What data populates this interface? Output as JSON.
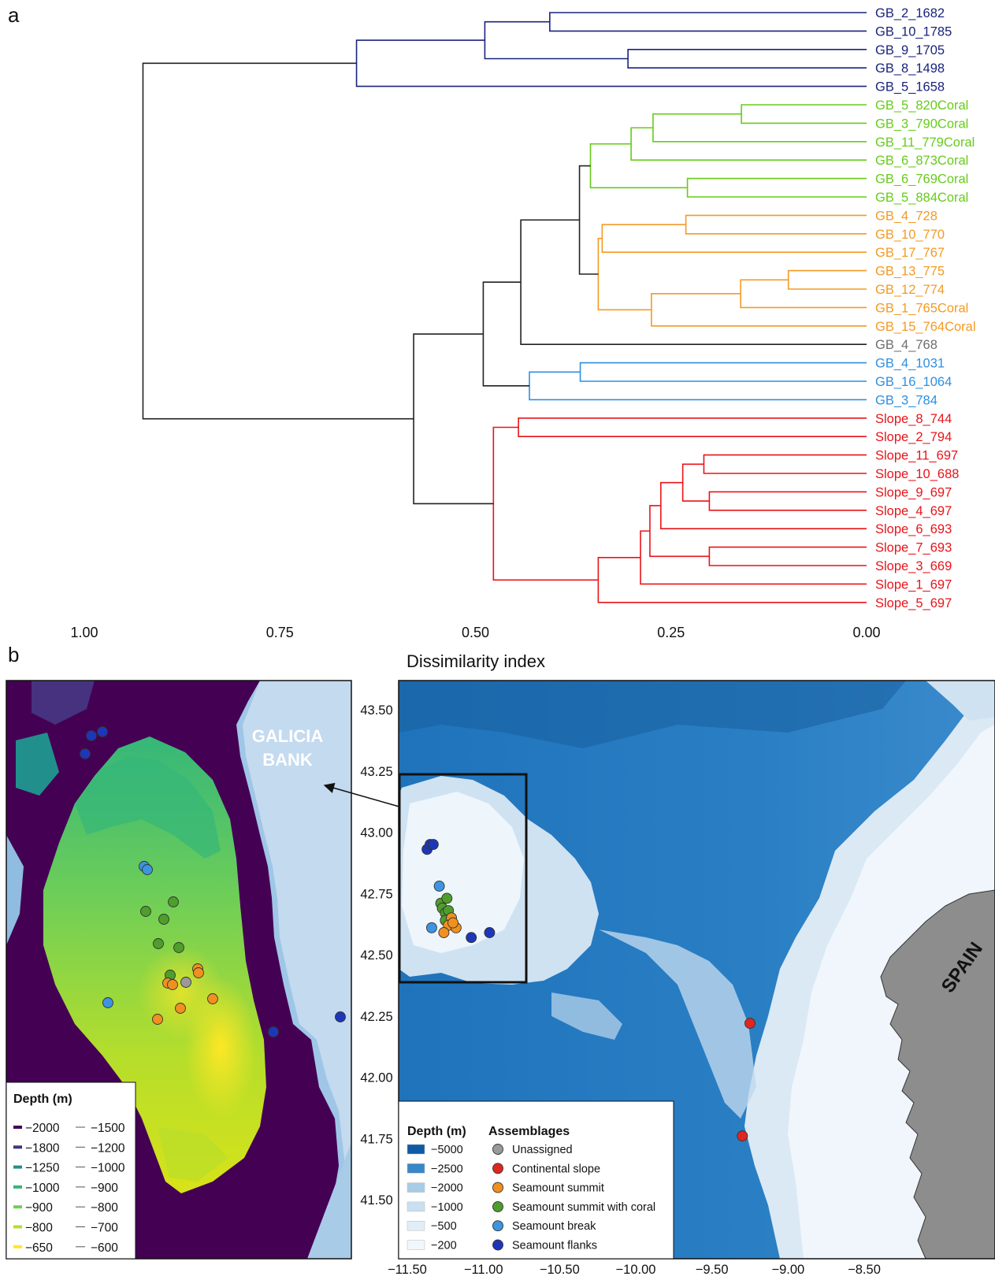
{
  "panel_a": {
    "label": "a",
    "axis_title": "Dissimilarity index",
    "ticks": [
      "1.00",
      "0.75",
      "0.50",
      "0.25",
      "0.00"
    ],
    "tick_values": [
      1.0,
      0.75,
      0.5,
      0.25,
      0.0
    ],
    "colors": {
      "deep": "#1a237e",
      "coral": "#66cc1a",
      "summit": "#f39a26",
      "unassigned": "#6e6e6e",
      "break": "#2e8fe0",
      "slope": "#e8141a",
      "black": "#222222"
    },
    "leaves": [
      {
        "name": "GB_2_1682",
        "group": "deep"
      },
      {
        "name": "GB_10_1785",
        "group": "deep"
      },
      {
        "name": "GB_9_1705",
        "group": "deep"
      },
      {
        "name": "GB_8_1498",
        "group": "deep"
      },
      {
        "name": "GB_5_1658",
        "group": "deep"
      },
      {
        "name": "GB_5_820Coral",
        "group": "coral"
      },
      {
        "name": "GB_3_790Coral",
        "group": "coral"
      },
      {
        "name": "GB_11_779Coral",
        "group": "coral"
      },
      {
        "name": "GB_6_873Coral",
        "group": "coral"
      },
      {
        "name": "GB_6_769Coral",
        "group": "coral"
      },
      {
        "name": "GB_5_884Coral",
        "group": "coral"
      },
      {
        "name": "GB_4_728",
        "group": "summit"
      },
      {
        "name": "GB_10_770",
        "group": "summit"
      },
      {
        "name": "GB_17_767",
        "group": "summit"
      },
      {
        "name": "GB_13_775",
        "group": "summit"
      },
      {
        "name": "GB_12_774",
        "group": "summit"
      },
      {
        "name": "GB_1_765Coral",
        "group": "summit"
      },
      {
        "name": "GB_15_764Coral",
        "group": "summit"
      },
      {
        "name": "GB_4_768",
        "group": "unassigned"
      },
      {
        "name": "GB_4_1031",
        "group": "break"
      },
      {
        "name": "GB_16_1064",
        "group": "break"
      },
      {
        "name": "GB_3_784",
        "group": "break"
      },
      {
        "name": "Slope_8_744",
        "group": "slope"
      },
      {
        "name": "Slope_2_794",
        "group": "slope"
      },
      {
        "name": "Slope_11_697",
        "group": "slope"
      },
      {
        "name": "Slope_10_688",
        "group": "slope"
      },
      {
        "name": "Slope_9_697",
        "group": "slope"
      },
      {
        "name": "Slope_4_697",
        "group": "slope"
      },
      {
        "name": "Slope_6_693",
        "group": "slope"
      },
      {
        "name": "Slope_7_693",
        "group": "slope"
      },
      {
        "name": "Slope_3_669",
        "group": "slope"
      },
      {
        "name": "Slope_1_697",
        "group": "slope"
      },
      {
        "name": "Slope_5_697",
        "group": "slope"
      }
    ],
    "merges": [
      {
        "id": "d1",
        "a": 0,
        "b": 1,
        "h": 0.405,
        "c": "deep"
      },
      {
        "id": "d2",
        "a": 2,
        "b": 3,
        "h": 0.305,
        "c": "deep"
      },
      {
        "id": "d3",
        "a": "d1",
        "b": "d2",
        "h": 0.488,
        "c": "deep"
      },
      {
        "id": "d4",
        "a": "d3",
        "b": 4,
        "h": 0.652,
        "c": "deep"
      },
      {
        "id": "c1",
        "a": 5,
        "b": 6,
        "h": 0.16,
        "c": "coral"
      },
      {
        "id": "c2",
        "a": "c1",
        "b": 7,
        "h": 0.273,
        "c": "coral"
      },
      {
        "id": "c3",
        "a": "c2",
        "b": 8,
        "h": 0.301,
        "c": "coral"
      },
      {
        "id": "c4",
        "a": 9,
        "b": 10,
        "h": 0.229,
        "c": "coral"
      },
      {
        "id": "c5",
        "a": "c3",
        "b": "c4",
        "h": 0.353,
        "c": "coral"
      },
      {
        "id": "s1",
        "a": 11,
        "b": 12,
        "h": 0.231,
        "c": "summit"
      },
      {
        "id": "s2",
        "a": "s1",
        "b": 13,
        "h": 0.338,
        "c": "summit"
      },
      {
        "id": "s3",
        "a": 14,
        "b": 15,
        "h": 0.1,
        "c": "summit"
      },
      {
        "id": "s4",
        "a": "s3",
        "b": 16,
        "h": 0.161,
        "c": "summit"
      },
      {
        "id": "s5",
        "a": "s4",
        "b": 17,
        "h": 0.275,
        "c": "summit"
      },
      {
        "id": "s6",
        "a": "s2",
        "b": "s5",
        "h": 0.343,
        "c": "summit"
      },
      {
        "id": "k1",
        "a": "c5",
        "b": "s6",
        "h": 0.367,
        "c": "black"
      },
      {
        "id": "k2",
        "a": "k1",
        "b": 18,
        "h": 0.442,
        "c": "black"
      },
      {
        "id": "b1",
        "a": 19,
        "b": 20,
        "h": 0.366,
        "c": "break"
      },
      {
        "id": "b2",
        "a": "b1",
        "b": 21,
        "h": 0.431,
        "c": "break"
      },
      {
        "id": "k3",
        "a": "k2",
        "b": "b2",
        "h": 0.49,
        "c": "black"
      },
      {
        "id": "r1",
        "a": 22,
        "b": 23,
        "h": 0.445,
        "c": "slope"
      },
      {
        "id": "r2",
        "a": 24,
        "b": 25,
        "h": 0.208,
        "c": "slope"
      },
      {
        "id": "r3",
        "a": 26,
        "b": 27,
        "h": 0.201,
        "c": "slope"
      },
      {
        "id": "r4",
        "a": "r2",
        "b": "r3",
        "h": 0.235,
        "c": "slope"
      },
      {
        "id": "r5",
        "a": "r4",
        "b": 28,
        "h": 0.263,
        "c": "slope"
      },
      {
        "id": "r6",
        "a": 29,
        "b": 30,
        "h": 0.201,
        "c": "slope"
      },
      {
        "id": "r7",
        "a": "r5",
        "b": "r6",
        "h": 0.277,
        "c": "slope"
      },
      {
        "id": "r8",
        "a": "r7",
        "b": 31,
        "h": 0.289,
        "c": "slope"
      },
      {
        "id": "r9",
        "a": "r8",
        "b": 32,
        "h": 0.343,
        "c": "slope"
      },
      {
        "id": "r10",
        "a": "r1",
        "b": "r9",
        "h": 0.477,
        "c": "slope"
      },
      {
        "id": "k4",
        "a": "k3",
        "b": "r10",
        "h": 0.579,
        "c": "black"
      },
      {
        "id": "k5",
        "a": "d4",
        "b": "k4",
        "h": 0.925,
        "c": "black"
      }
    ]
  },
  "panel_b": {
    "label": "b",
    "inset": {
      "title": "GALICIA BANK",
      "legend_title": "Depth (m)",
      "legend_rows": [
        {
          "a": "−2000",
          "b": "−1500",
          "color": "#440154"
        },
        {
          "a": "−1800",
          "b": "−1200",
          "color": "#46327e"
        },
        {
          "a": "−1250",
          "b": "−1000",
          "color": "#21908c"
        },
        {
          "a": "−1000",
          "b": "−900",
          "color": "#35b779"
        },
        {
          "a": "−900",
          "b": "−800",
          "color": "#6ece58"
        },
        {
          "a": "−800",
          "b": "−700",
          "color": "#b5de2b"
        },
        {
          "a": "−650",
          "b": "−600",
          "color": "#fde725"
        }
      ],
      "points": [
        {
          "x": 116,
          "y": 934,
          "c": "flanks"
        },
        {
          "x": 130,
          "y": 929,
          "c": "flanks"
        },
        {
          "x": 108,
          "y": 957,
          "c": "flanks"
        },
        {
          "x": 183,
          "y": 1100,
          "c": "break"
        },
        {
          "x": 187,
          "y": 1104,
          "c": "break"
        },
        {
          "x": 137,
          "y": 1273,
          "c": "break"
        },
        {
          "x": 220,
          "y": 1145,
          "c": "coral"
        },
        {
          "x": 185,
          "y": 1157,
          "c": "coral"
        },
        {
          "x": 208,
          "y": 1167,
          "c": "coral"
        },
        {
          "x": 201,
          "y": 1198,
          "c": "coral"
        },
        {
          "x": 227,
          "y": 1203,
          "c": "coral"
        },
        {
          "x": 216,
          "y": 1238,
          "c": "coral"
        },
        {
          "x": 251,
          "y": 1230,
          "c": "summit"
        },
        {
          "x": 252,
          "y": 1235,
          "c": "summit"
        },
        {
          "x": 213,
          "y": 1248,
          "c": "summit"
        },
        {
          "x": 219,
          "y": 1250,
          "c": "summit"
        },
        {
          "x": 236,
          "y": 1247,
          "c": "unassigned"
        },
        {
          "x": 270,
          "y": 1268,
          "c": "summit"
        },
        {
          "x": 229,
          "y": 1280,
          "c": "summit"
        },
        {
          "x": 200,
          "y": 1294,
          "c": "summit"
        },
        {
          "x": 347,
          "y": 1310,
          "c": "flanks"
        },
        {
          "x": 432,
          "y": 1291,
          "c": "flanks"
        }
      ]
    },
    "map": {
      "lat_ticks": [
        "43.50",
        "43.25",
        "43.00",
        "42.75",
        "42.50",
        "42.25",
        "42.00",
        "41.75",
        "41.50"
      ],
      "lat_values": [
        43.5,
        43.25,
        43.0,
        42.75,
        42.5,
        42.25,
        42.0,
        41.75,
        41.5
      ],
      "lon_ticks": [
        "−11.50",
        "−11.00",
        "−10.50",
        "−10.00",
        "−9.50",
        "−9.00",
        "−8.50"
      ],
      "lon_values": [
        -11.5,
        -11.0,
        -10.5,
        -10.0,
        -9.5,
        -9.0,
        -8.5
      ],
      "country": "SPAIN",
      "points": [
        {
          "lon": -11.37,
          "lat": 42.93,
          "c": "flanks"
        },
        {
          "lon": -11.35,
          "lat": 42.95,
          "c": "flanks"
        },
        {
          "lon": -11.33,
          "lat": 42.95,
          "c": "flanks"
        },
        {
          "lon": -11.29,
          "lat": 42.78,
          "c": "break"
        },
        {
          "lon": -11.34,
          "lat": 42.61,
          "c": "break"
        },
        {
          "lon": -11.28,
          "lat": 42.71,
          "c": "coral"
        },
        {
          "lon": -11.24,
          "lat": 42.73,
          "c": "coral"
        },
        {
          "lon": -11.27,
          "lat": 42.69,
          "c": "coral"
        },
        {
          "lon": -11.25,
          "lat": 42.67,
          "c": "coral"
        },
        {
          "lon": -11.23,
          "lat": 42.68,
          "c": "coral"
        },
        {
          "lon": -11.25,
          "lat": 42.64,
          "c": "coral"
        },
        {
          "lon": -11.21,
          "lat": 42.65,
          "c": "summit"
        },
        {
          "lon": -11.23,
          "lat": 42.62,
          "c": "summit"
        },
        {
          "lon": -11.18,
          "lat": 42.61,
          "c": "summit"
        },
        {
          "lon": -11.26,
          "lat": 42.59,
          "c": "summit"
        },
        {
          "lon": -11.2,
          "lat": 42.63,
          "c": "summit"
        },
        {
          "lon": -11.08,
          "lat": 42.57,
          "c": "flanks"
        },
        {
          "lon": -10.96,
          "lat": 42.59,
          "c": "flanks"
        },
        {
          "lon": -9.25,
          "lat": 42.22,
          "c": "slope"
        },
        {
          "lon": -9.3,
          "lat": 41.76,
          "c": "slope"
        }
      ],
      "depth_legend_title": "Depth (m)",
      "depth_legend": [
        {
          "label": "−5000",
          "color": "#0f5aa3"
        },
        {
          "label": "−2500",
          "color": "#3a87c8"
        },
        {
          "label": "−2000",
          "color": "#a7cde6"
        },
        {
          "label": "−1000",
          "color": "#cadff0"
        },
        {
          "label": "−500",
          "color": "#e1edf7"
        },
        {
          "label": "−200",
          "color": "#f2f7fb"
        }
      ],
      "assemblage_title": "Assemblages",
      "assemblages": [
        {
          "key": "unassigned",
          "label": "Unassigned",
          "color": "#9a9a9a"
        },
        {
          "key": "slope",
          "label": "Continental slope",
          "color": "#e0261f"
        },
        {
          "key": "summit",
          "label": "Seamount summit",
          "color": "#f0901f"
        },
        {
          "key": "coral",
          "label": "Seamount summit with coral",
          "color": "#4e9e2b"
        },
        {
          "key": "break",
          "label": "Seamount break",
          "color": "#3d94e0"
        },
        {
          "key": "flanks",
          "label": "Seamount flanks",
          "color": "#1d37b8"
        }
      ]
    }
  }
}
